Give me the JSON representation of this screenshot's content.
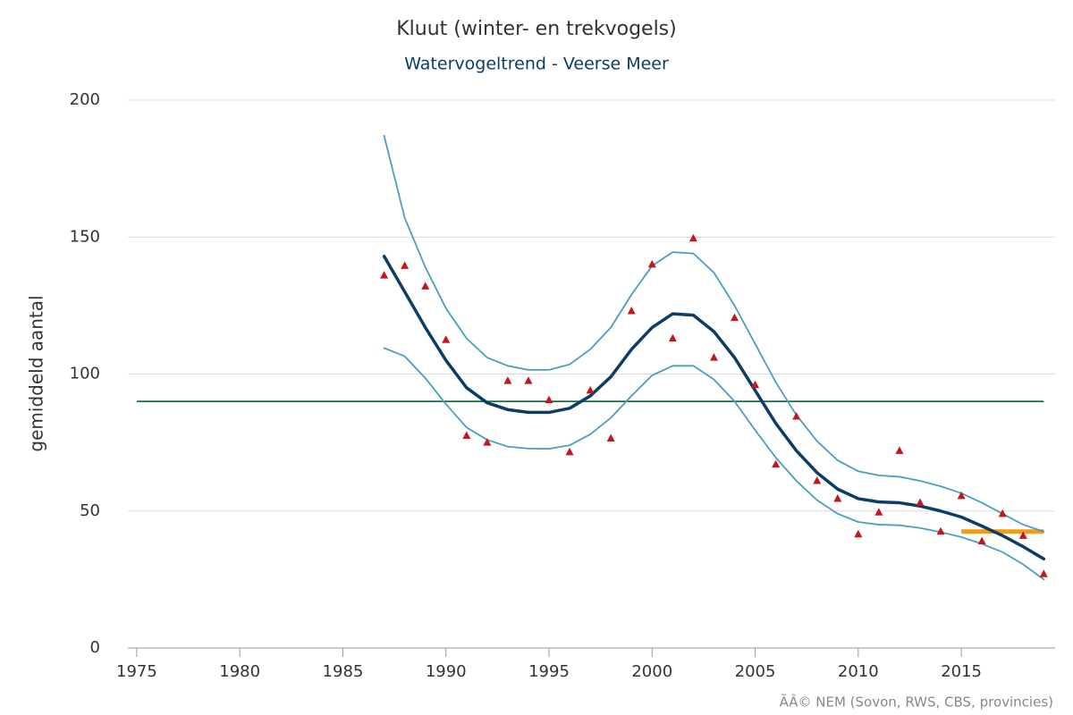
{
  "chart_data": {
    "type": "line",
    "title": "Kluut (winter- en trekvogels)",
    "subtitle": "Watervogeltrend - Veerse Meer",
    "y_label": "gemiddeld aantal",
    "credit": "ÃÂ© NEM (Sovon, RWS, CBS, provincies)",
    "x": [
      1987,
      1988,
      1989,
      1990,
      1991,
      1992,
      1993,
      1994,
      1995,
      1996,
      1997,
      1998,
      1999,
      2000,
      2001,
      2002,
      2003,
      2004,
      2005,
      2006,
      2007,
      2008,
      2009,
      2010,
      2011,
      2012,
      2013,
      2014,
      2015,
      2016,
      2017,
      2018,
      2019
    ],
    "series": [
      {
        "color": "#4a9fc0",
        "width": 1.8,
        "values": [
          187,
          157,
          139,
          124,
          113,
          106,
          103,
          101.5,
          101.5,
          103.5,
          109,
          117,
          129,
          139.5,
          144.5,
          144,
          137,
          125,
          111,
          97,
          85,
          75.5,
          68.5,
          64.5,
          63,
          62.5,
          61,
          59,
          56.5,
          53,
          49,
          45,
          42.5
        ]
      },
      {
        "color": "#4a9fc0",
        "width": 1.8,
        "values": [
          109.5,
          106.5,
          98.5,
          89,
          80.5,
          76,
          73.5,
          72.8,
          72.7,
          74,
          78,
          84,
          92,
          99.5,
          103,
          103,
          98,
          90,
          79.5,
          69.5,
          61,
          54,
          49,
          46,
          45,
          44.8,
          43.8,
          42.3,
          40.5,
          38,
          35,
          30.5,
          25
        ]
      },
      {
        "color": "#0b3d66",
        "width": 3.5,
        "values": [
          143,
          130,
          117,
          105,
          95,
          89.5,
          87,
          86,
          86,
          87.5,
          92,
          99,
          109,
          117,
          122,
          121.5,
          115.5,
          106,
          94,
          82,
          72,
          64,
          58,
          54.5,
          53.3,
          53,
          51.8,
          50,
          47.8,
          44.5,
          41,
          37,
          32.5
        ]
      },
      {
        "color": "#c4161c",
        "marker": "triangle",
        "values": [
          136,
          139.5,
          132,
          112.5,
          77.5,
          75,
          97.5,
          97.5,
          90.5,
          71.5,
          94,
          76.5,
          123,
          140,
          113,
          149.5,
          106,
          120.5,
          96,
          67,
          84.5,
          61,
          54.5,
          41.5,
          49.5,
          72,
          53,
          42.5,
          55.5,
          39,
          49,
          41,
          27
        ]
      }
    ],
    "reference_lines": [
      {
        "y": 90,
        "x": [
          1975,
          2019
        ],
        "color": "#1a7040",
        "width": 1.8
      },
      {
        "y": 42.5,
        "x": [
          2015,
          2019
        ],
        "color": "#f39c12",
        "width": 5
      }
    ],
    "xlim": [
      1974.57,
      2019.55
    ],
    "xticks": [
      1975,
      1980,
      1985,
      1990,
      1995,
      2000,
      2005,
      2010,
      2015
    ],
    "ylim": [
      0,
      200
    ],
    "yticks": [
      0,
      50,
      100,
      150,
      200
    ],
    "grid": true
  }
}
